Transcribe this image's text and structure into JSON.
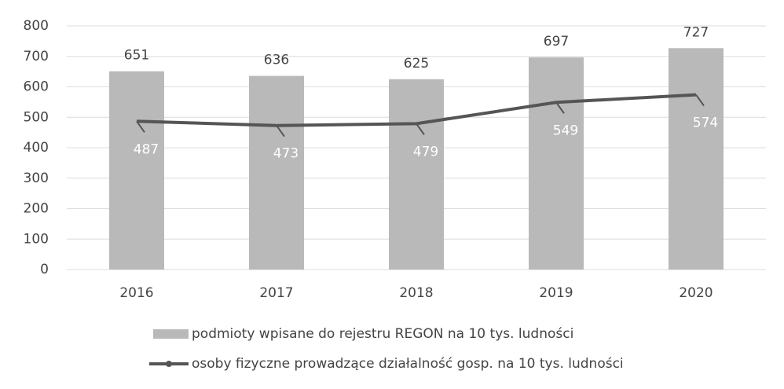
{
  "chart_data": {
    "type": "bar",
    "categories": [
      "2016",
      "2017",
      "2018",
      "2019",
      "2020"
    ],
    "series": [
      {
        "name": "podmioty wpisane do rejestru REGON na 10 tys. ludności",
        "type": "bar",
        "color": "#b9b9b9",
        "values": [
          651,
          636,
          625,
          697,
          727
        ]
      },
      {
        "name": "osoby fizyczne prowadzące działalność gosp. na 10 tys. ludności",
        "type": "line",
        "color": "#555555",
        "values": [
          487,
          473,
          479,
          549,
          574
        ]
      }
    ],
    "ylim": [
      0,
      800
    ],
    "yticks": [
      0,
      100,
      200,
      300,
      400,
      500,
      600,
      700,
      800
    ],
    "grid": true,
    "legend": "bottom"
  }
}
